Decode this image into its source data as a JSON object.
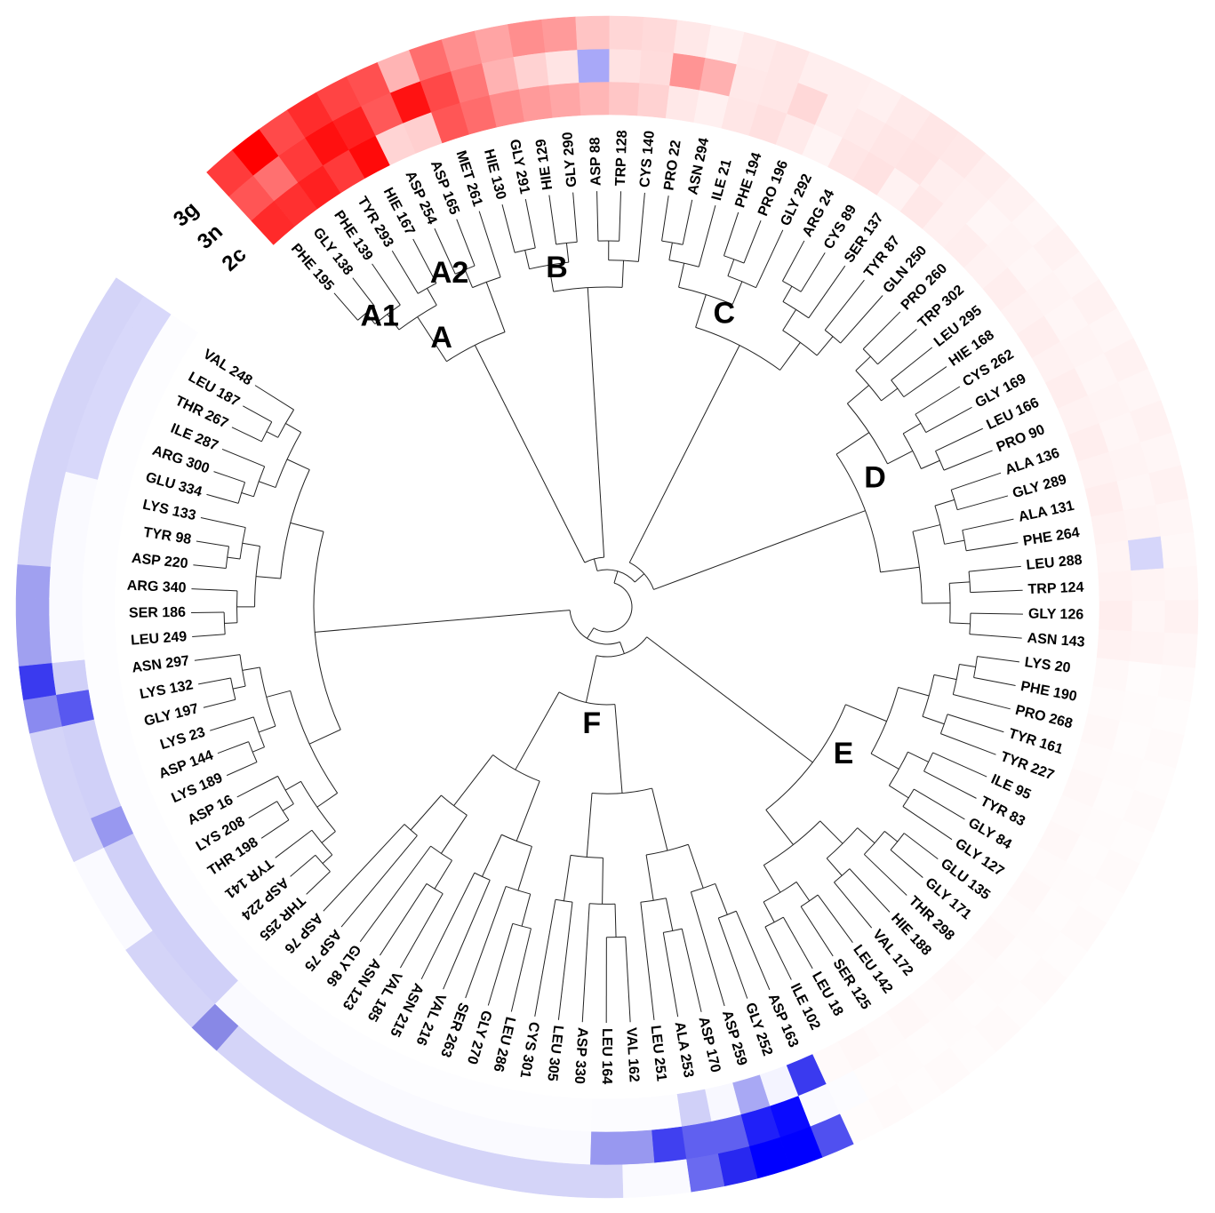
{
  "rings": [
    "2c",
    "3n",
    "3g"
  ],
  "clusters": [
    {
      "label": "A",
      "children": [
        {
          "label": "A1",
          "leaves": [
            {
              "name": "PHE 195",
              "heat": [
                "#ff2a2a",
                "#ff5555",
                "#ff3b3b"
              ]
            },
            {
              "name": "GLY 138",
              "heat": [
                "#ff3030",
                "#ff7070",
                "#ff0000"
              ]
            },
            {
              "name": "PHE 139",
              "heat": [
                "#ff2020",
                "#ff3a3a",
                "#ff4a4a"
              ]
            },
            {
              "name": "TYR 293",
              "heat": [
                "#ff3a3a",
                "#ff1010",
                "#ff2c2c"
              ]
            },
            {
              "name": "HIE 167",
              "heat": [
                "#ff0a0a",
                "#ff2020",
                "#ff4444"
              ]
            }
          ]
        },
        {
          "label": "A2",
          "leaves": [
            {
              "name": "ASP 254",
              "heat": [
                "#ffd4d4",
                "#ff5858",
                "#ff5050"
              ]
            },
            {
              "name": "ASP 165",
              "heat": [
                "#ffcfcf",
                "#ff1212",
                "#ffb4b4"
              ]
            },
            {
              "name": "MET 261",
              "heat": [
                "#ff5656",
                "#ff4848",
                "#ff6e6e"
              ]
            }
          ]
        }
      ]
    },
    {
      "label": "B",
      "leaves": [
        {
          "name": "HIE 130",
          "heat": [
            "#ff6c6c",
            "#ff7878",
            "#ff8e8e"
          ]
        },
        {
          "name": "GLY 291",
          "heat": [
            "#ff8a8a",
            "#ffb2b2",
            "#ffa4a4"
          ]
        },
        {
          "name": "HIE 129",
          "heat": [
            "#ff9a9a",
            "#ffd2d2",
            "#ff8e8e"
          ]
        },
        {
          "name": "GLY 290",
          "heat": [
            "#ffa6a6",
            "#ffe4e4",
            "#ff9a9a"
          ]
        },
        {
          "name": "ASP 88",
          "heat": [
            "#ffb6b6",
            "#a8a8f8",
            "#ffc4c4"
          ]
        },
        {
          "name": "TRP 128",
          "heat": [
            "#ffc6c6",
            "#ffe2e2",
            "#ffd6d6"
          ]
        },
        {
          "name": "CYS 140",
          "heat": [
            "#ffd2d2",
            "#ffdcdc",
            "#ffdada"
          ]
        }
      ]
    },
    {
      "label": "C",
      "leaves": [
        {
          "name": "PRO 22",
          "heat": [
            "#ffe8e8",
            "#ff9494",
            "#ffe8e8"
          ]
        },
        {
          "name": "ASN 294",
          "heat": [
            "#fff0f0",
            "#ffb0b0",
            "#fff2f2"
          ]
        },
        {
          "name": "ILE 21",
          "heat": [
            "#ffe6e6",
            "#ffe8e8",
            "#ffeaea"
          ]
        },
        {
          "name": "PHE 194",
          "heat": [
            "#ffe0e0",
            "#ffe6e6",
            "#ffe6e6"
          ]
        },
        {
          "name": "PRO 196",
          "heat": [
            "#ffeaea",
            "#ffd8d8",
            "#ffeeee"
          ]
        },
        {
          "name": "GLY 292",
          "heat": [
            "#fff4f4",
            "#ffeeee",
            "#ffeeee"
          ]
        },
        {
          "name": "ARG 24",
          "heat": [
            "#ffe6e6",
            "#ffeaea",
            "#fff0f0"
          ]
        },
        {
          "name": "CYS 89",
          "heat": [
            "#ffe2e2",
            "#ffe6e6",
            "#ffeaea"
          ]
        },
        {
          "name": "SER 137",
          "heat": [
            "#fff2f2",
            "#ffe4e4",
            "#ffe6e6"
          ]
        },
        {
          "name": "TYR 87",
          "heat": [
            "#ffe8e8",
            "#ffeeee",
            "#ffe8e8"
          ]
        },
        {
          "name": "GLN 250",
          "heat": [
            "#fff0f0",
            "#fff0f0",
            "#ffeeee"
          ]
        }
      ]
    },
    {
      "label": "D",
      "leaves": [
        {
          "name": "PRO 260",
          "heat": [
            "#ffeeee",
            "#fff6f6",
            "#fff2f2"
          ]
        },
        {
          "name": "TRP 302",
          "heat": [
            "#fff2f2",
            "#fff4f4",
            "#fff6f6"
          ]
        },
        {
          "name": "LEU 295",
          "heat": [
            "#ffeeee",
            "#fff6f6",
            "#fff2f2"
          ]
        },
        {
          "name": "HIE 168",
          "heat": [
            "#fff2f2",
            "#fff4f4",
            "#fff6f6"
          ]
        },
        {
          "name": "CYS 262",
          "heat": [
            "#ffeeee",
            "#fff6f6",
            "#fff2f2"
          ]
        },
        {
          "name": "GLY 169",
          "heat": [
            "#fff2f2",
            "#fff4f4",
            "#fff6f6"
          ]
        },
        {
          "name": "LEU 166",
          "heat": [
            "#ffeeee",
            "#fff6f6",
            "#fff2f2"
          ]
        },
        {
          "name": "PRO 90",
          "heat": [
            "#fff2f2",
            "#fff4f4",
            "#fff6f6"
          ]
        },
        {
          "name": "ALA 136",
          "heat": [
            "#ffeeee",
            "#fff6f6",
            "#fff2f2"
          ]
        },
        {
          "name": "GLY 289",
          "heat": [
            "#fff2f2",
            "#fff4f4",
            "#fff6f6"
          ]
        },
        {
          "name": "ALA 131",
          "heat": [
            "#ffeeee",
            "#fff6f6",
            "#fff2f2"
          ]
        },
        {
          "name": "PHE 264",
          "heat": [
            "#fff2f2",
            "#fff4f4",
            "#fff6f6"
          ]
        },
        {
          "name": "LEU 288",
          "heat": [
            "#fff4f4",
            "#d6d6fa",
            "#fff8f8"
          ]
        },
        {
          "name": "TRP 124",
          "heat": [
            "#fff2f2",
            "#fff4f4",
            "#fff6f6"
          ]
        },
        {
          "name": "GLY 126",
          "heat": [
            "#ffeeee",
            "#fff6f6",
            "#fff2f2"
          ]
        },
        {
          "name": "ASN 143",
          "heat": [
            "#fff2f2",
            "#fff4f4",
            "#fff6f6"
          ]
        }
      ]
    },
    {
      "label": "E",
      "leaves": [
        {
          "name": "LYS 20",
          "heat": [
            "#fff8f8",
            "#fffcfc",
            "#fffafa"
          ]
        },
        {
          "name": "PHE 190",
          "heat": [
            "#fffafa",
            "#fffbfb",
            "#fffcfc"
          ]
        },
        {
          "name": "PRO 268",
          "heat": [
            "#fff8f8",
            "#fffcfc",
            "#fffafa"
          ]
        },
        {
          "name": "TYR 161",
          "heat": [
            "#fffafa",
            "#fffbfb",
            "#fffcfc"
          ]
        },
        {
          "name": "TYR 227",
          "heat": [
            "#fff8f8",
            "#fffcfc",
            "#fffafa"
          ]
        },
        {
          "name": "ILE 95",
          "heat": [
            "#fffafa",
            "#fffbfb",
            "#fffcfc"
          ]
        },
        {
          "name": "TYR 83",
          "heat": [
            "#fff8f8",
            "#fffcfc",
            "#fffafa"
          ]
        },
        {
          "name": "GLY 84",
          "heat": [
            "#fffafa",
            "#fffbfb",
            "#fffcfc"
          ]
        },
        {
          "name": "GLY 127",
          "heat": [
            "#fff8f8",
            "#fffcfc",
            "#fffafa"
          ]
        },
        {
          "name": "GLU 135",
          "heat": [
            "#fffafa",
            "#fffbfb",
            "#fffcfc"
          ]
        },
        {
          "name": "GLY 171",
          "heat": [
            "#fff8f8",
            "#fffcfc",
            "#fffafa"
          ]
        },
        {
          "name": "THR 298",
          "heat": [
            "#fffafa",
            "#fffbfb",
            "#fffcfc"
          ]
        },
        {
          "name": "HIE 188",
          "heat": [
            "#fff8f8",
            "#fffcfc",
            "#fffafa"
          ]
        },
        {
          "name": "VAL 172",
          "heat": [
            "#fffafa",
            "#fffbfb",
            "#fffcfc"
          ]
        },
        {
          "name": "LEU 142",
          "heat": [
            "#fff8f8",
            "#fffcfc",
            "#fffafa"
          ]
        },
        {
          "name": "SER 125",
          "heat": [
            "#fffafa",
            "#fffbfb",
            "#fffcfc"
          ]
        },
        {
          "name": "LEU 18",
          "heat": [
            "#fff8f8",
            "#fffcfc",
            "#fffafa"
          ]
        },
        {
          "name": "ILE 102",
          "heat": [
            "#fffafa",
            "#fcfcff",
            "#fffcfc"
          ]
        }
      ]
    },
    {
      "label": "F",
      "leaves": [
        {
          "name": "ASP 163",
          "heat": [
            "#3a3aef",
            "#fafaff",
            "#5050f0"
          ]
        },
        {
          "name": "GLY 252",
          "heat": [
            "#f4f4ff",
            "#0a0aff",
            "#0000ff"
          ]
        },
        {
          "name": "ASP 259",
          "heat": [
            "#a8a8f4",
            "#2020f8",
            "#0000ff"
          ]
        },
        {
          "name": "ASP 170",
          "heat": [
            "#f8f8ff",
            "#6060f0",
            "#2828f0"
          ]
        },
        {
          "name": "ALA 253",
          "heat": [
            "#d0d0f8",
            "#6060f0",
            "#6a6af0"
          ]
        },
        {
          "name": "LEU 251",
          "heat": [
            "#fcfcff",
            "#4040f0",
            "#fafaff"
          ]
        },
        {
          "name": "VAL 162",
          "heat": [
            "#fcfcff",
            "#9898f0",
            "#fafaff"
          ]
        },
        {
          "name": "LEU 164",
          "heat": [
            "#fcfcff",
            "#9898f0",
            "#d4d4f8"
          ]
        },
        {
          "name": "ASP 330",
          "heat": [
            "#fdfdff",
            "#fafaff",
            "#d4d4f8"
          ]
        },
        {
          "name": "LEU 305",
          "heat": [
            "#fdfdff",
            "#fafaff",
            "#d4d4f8"
          ]
        },
        {
          "name": "CYS 301",
          "heat": [
            "#fdfdff",
            "#fafaff",
            "#d4d4f8"
          ]
        },
        {
          "name": "LEU 286",
          "heat": [
            "#fdfdff",
            "#fafaff",
            "#d4d4f8"
          ]
        },
        {
          "name": "GLY 270",
          "heat": [
            "#fdfdff",
            "#fafaff",
            "#d4d4f8"
          ]
        },
        {
          "name": "SER 263",
          "heat": [
            "#fdfdff",
            "#fafaff",
            "#d4d4f8"
          ]
        },
        {
          "name": "VAL 216",
          "heat": [
            "#fdfdff",
            "#fafaff",
            "#d4d4f8"
          ]
        },
        {
          "name": "ASN 215",
          "heat": [
            "#fdfdff",
            "#fafaff",
            "#d4d4f8"
          ]
        },
        {
          "name": "VAL 185",
          "heat": [
            "#fdfdff",
            "#fafaff",
            "#d4d4f8"
          ]
        },
        {
          "name": "ASN 123",
          "heat": [
            "#fdfdff",
            "#fafaff",
            "#d4d4f8"
          ]
        },
        {
          "name": "GLY 86",
          "heat": [
            "#fdfdff",
            "#fafaff",
            "#d4d4f8"
          ]
        },
        {
          "name": "ASP 75",
          "heat": [
            "#fdfdff",
            "#fafaff",
            "#d4d4f8"
          ]
        },
        {
          "name": "ASP 76",
          "heat": [
            "#fdfdff",
            "#fafaff",
            "#8888e6"
          ]
        }
      ]
    },
    {
      "leaves": [
        {
          "name": "THR 255",
          "heat": [
            "#fdfdff",
            "#d0d0f8",
            "#d4d4f8"
          ]
        },
        {
          "name": "ASP 224",
          "heat": [
            "#fdfdff",
            "#d0d0f8",
            "#d4d4f8"
          ]
        },
        {
          "name": "TYR 141",
          "heat": [
            "#fdfdff",
            "#d0d0f8",
            "#d4d4f8"
          ]
        },
        {
          "name": "THR 198",
          "heat": [
            "#fdfdff",
            "#d0d0f8",
            "#fafaff"
          ]
        },
        {
          "name": "LYS 208",
          "heat": [
            "#fdfdff",
            "#d0d0f8",
            "#fafaff"
          ]
        },
        {
          "name": "ASP 16",
          "heat": [
            "#fdfdff",
            "#d0d0f8",
            "#fafaff"
          ]
        },
        {
          "name": "LYS 189",
          "heat": [
            "#fdfdff",
            "#9898f0",
            "#d4d4f8"
          ]
        },
        {
          "name": "ASP 144",
          "heat": [
            "#fdfdff",
            "#d0d0f8",
            "#d4d4f8"
          ]
        },
        {
          "name": "LYS 23",
          "heat": [
            "#fdfdff",
            "#d0d0f8",
            "#d4d4f8"
          ]
        },
        {
          "name": "GLY 197",
          "heat": [
            "#fdfdff",
            "#d0d0f8",
            "#d4d4f8"
          ]
        },
        {
          "name": "LYS 132",
          "heat": [
            "#fdfdff",
            "#5858f0",
            "#8a8af0"
          ]
        },
        {
          "name": "ASN 297",
          "heat": [
            "#fdfdff",
            "#d0d0f8",
            "#3a3aef"
          ]
        },
        {
          "name": "LEU 249",
          "heat": [
            "#fdfdff",
            "#fafaff",
            "#a0a0f0"
          ]
        },
        {
          "name": "SER 186",
          "heat": [
            "#fdfdff",
            "#fafaff",
            "#a0a0f0"
          ]
        },
        {
          "name": "ARG 340",
          "heat": [
            "#fdfdff",
            "#fafaff",
            "#a0a0f0"
          ]
        },
        {
          "name": "ASP 220",
          "heat": [
            "#fdfdff",
            "#fafaff",
            "#d4d4f8"
          ]
        },
        {
          "name": "TYR 98",
          "heat": [
            "#fdfdff",
            "#fafaff",
            "#d4d4f8"
          ]
        },
        {
          "name": "LYS 133",
          "heat": [
            "#fdfdff",
            "#fafaff",
            "#d4d4f8"
          ]
        },
        {
          "name": "GLU 334",
          "heat": [
            "#fdfdff",
            "#d8d8fa",
            "#d4d4f8"
          ]
        },
        {
          "name": "ARG 300",
          "heat": [
            "#fdfdff",
            "#d8d8fa",
            "#d4d4f8"
          ]
        },
        {
          "name": "ILE 287",
          "heat": [
            "#fdfdff",
            "#d8d8fa",
            "#d4d4f8"
          ]
        },
        {
          "name": "THR 267",
          "heat": [
            "#fdfdff",
            "#d8d8fa",
            "#d4d4f8"
          ]
        },
        {
          "name": "LEU 187",
          "heat": [
            "#fdfdff",
            "#d8d8fa",
            "#d4d4f8"
          ]
        },
        {
          "name": "VAL 248",
          "heat": [
            "#fdfdff",
            "#d8d8fa",
            "#d4d4f8"
          ]
        }
      ]
    }
  ]
}
